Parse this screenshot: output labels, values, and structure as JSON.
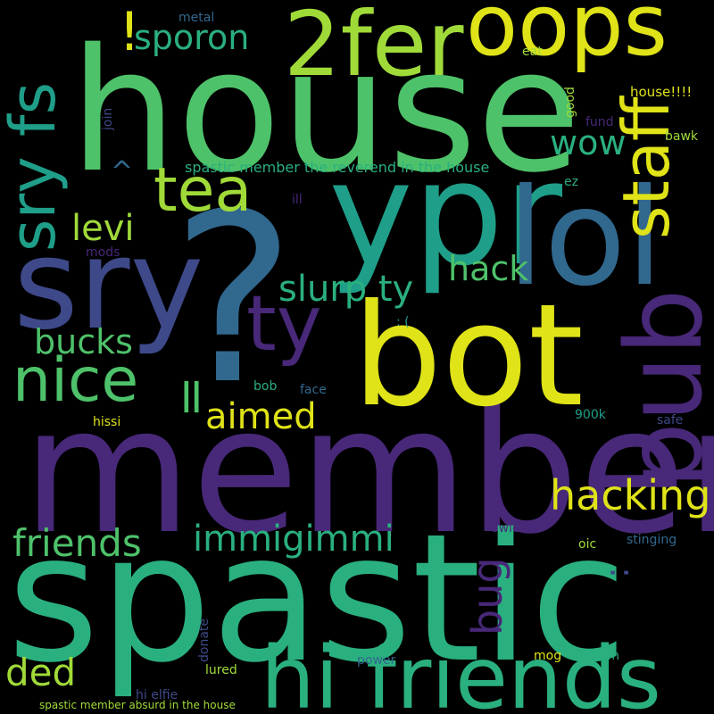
{
  "colors": {
    "background": "#000000",
    "green": "#4ec26a",
    "lime": "#a0da39",
    "yellow": "#dfe318",
    "teal": "#1f9e89",
    "teal_light": "#2ab07f",
    "blue": "#31688e",
    "slate": "#3e4989",
    "purple": "#482878",
    "dark_purple": "#440154"
  },
  "words": {
    "house": "house",
    "spastic": "spastic",
    "member": "member",
    "question": "?",
    "bot": "bot",
    "ypr": "ypr",
    "lol": "lol",
    "sry": "sry",
    "twofer": "2fer",
    "oops": "oops",
    "hi_friends": "hi friends",
    "pub": "pub",
    "ty": "ty",
    "tea": "tea",
    "staff": "staff",
    "sry_fs": "sry fs",
    "nice": "nice",
    "hacking": "hacking",
    "bang": "!",
    "sporon": "sporon",
    "wow": "wow",
    "levi": "levi",
    "hack": "hack",
    "slurp_ty": "slurp ty",
    "bucks": "bucks",
    "aimed": "aimed",
    "equals": "=",
    "friends": "friends",
    "immigimmi": "immigimmi",
    "ded": "ded",
    "bug": "bug",
    "caret": "^",
    "colon": ":",
    "sentence1": "spastic member the reverend in the house",
    "sentence2": "spastic member absurd in the house",
    "house4": "house!!!!",
    "metal": "metal",
    "eat": "eat",
    "join": "join",
    "good": "good",
    "fund": "fund",
    "bawk": "bawk",
    "ez": "ez",
    "ill": "ill",
    "mods": "mods",
    "sad": ": (",
    "bob": "bob",
    "face": "face",
    "hissi": "hissi",
    "k900": "900k",
    "safe": "safe",
    "owie": "owie",
    "oic": "oic",
    "stinging": "stinging",
    "donate": "donate",
    "lured": "lured",
    "power": "power",
    "mog": "mog",
    "btm": "btm",
    "hi_elfie": "hi elfie"
  }
}
